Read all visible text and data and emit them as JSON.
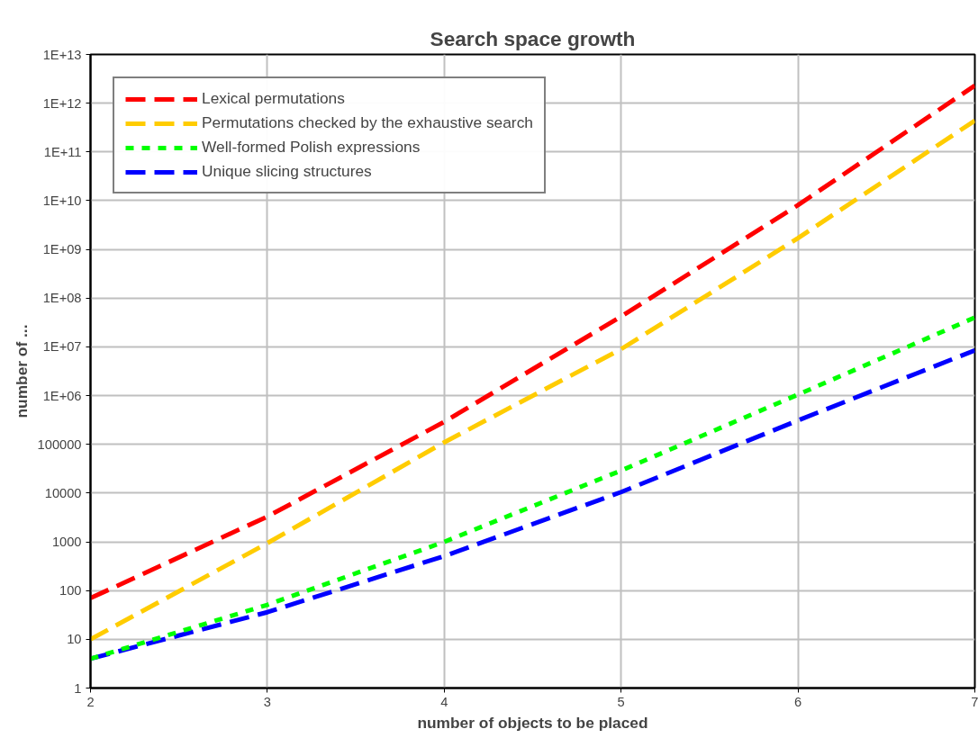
{
  "chart_data": {
    "type": "line",
    "title": "Search space growth",
    "xlabel": "number of objects to be placed",
    "ylabel": "number of ...",
    "x": [
      2,
      3,
      4,
      5,
      6,
      7
    ],
    "series": [
      {
        "name": "Lexical permutations",
        "color": "#ff0000",
        "line_style": "dashed",
        "values": [
          70,
          3300,
          290000,
          42000000,
          8100000000,
          2300000000000
        ]
      },
      {
        "name": "Permutations checked by the exhaustive search",
        "color": "#ffcc00",
        "line_style": "dashed",
        "values": [
          10,
          940,
          110000,
          9000000,
          1700000000,
          440000000000
        ]
      },
      {
        "name": "Well-formed Polish expressions",
        "color": "#00ff00",
        "line_style": "dotted",
        "values": [
          4,
          51,
          1000,
          29000,
          1050000,
          40000000
        ]
      },
      {
        "name": "Unique slicing structures",
        "color": "#0000ff",
        "line_style": "dashed",
        "values": [
          4,
          36,
          510,
          10500,
          310000,
          8500000
        ]
      }
    ],
    "log": true,
    "xlim": [
      2,
      7
    ],
    "xticks": [
      2,
      3,
      4,
      5,
      6,
      7
    ],
    "ylim": [
      1,
      10000000000000
    ],
    "yticks": [
      1,
      10,
      100,
      1000,
      10000,
      100000,
      {
        "value": 1000000,
        "label": "1E+06"
      },
      {
        "value": 10000000,
        "label": "1E+07"
      },
      {
        "value": 100000000,
        "label": "1E+08"
      },
      {
        "value": 1000000000,
        "label": "1E+09"
      },
      {
        "value": 10000000000,
        "label": "1E+10"
      },
      {
        "value": 100000000000,
        "label": "1E+11"
      },
      {
        "value": 1000000000000,
        "label": "1E+12"
      },
      {
        "value": 10000000000000,
        "label": "1E+13"
      }
    ],
    "grid": true,
    "legend": "top left",
    "marker": "none"
  }
}
